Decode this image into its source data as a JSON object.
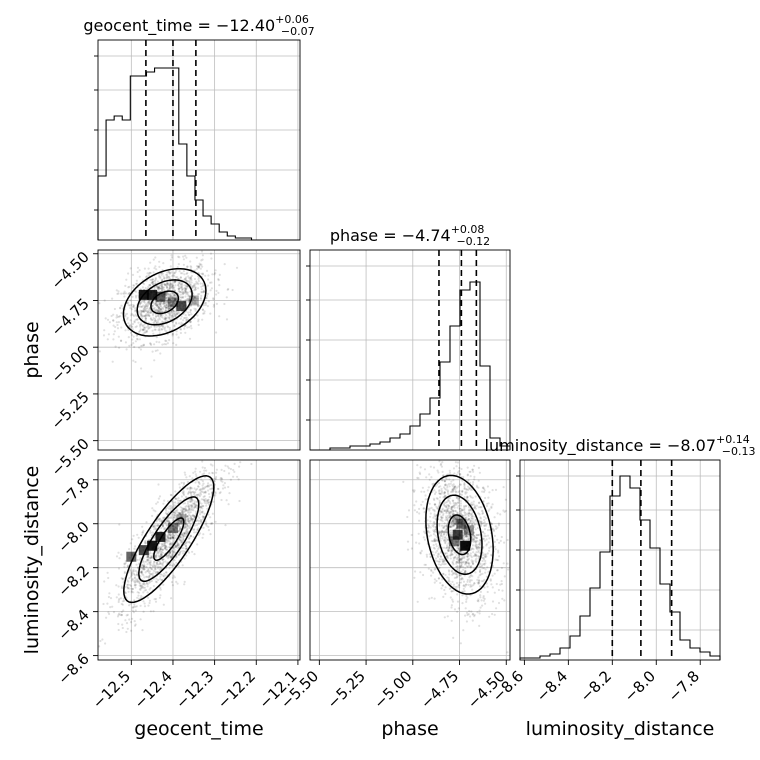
{
  "chart_data": {
    "type": "corner",
    "parameters": [
      {
        "name": "geocent_time",
        "title": {
          "base": "geocent_time = −12.40",
          "sup": "+0.06",
          "sub": "−0.07"
        },
        "median": -12.4,
        "quantile_lines": [
          -12.465,
          -12.4,
          -12.345
        ],
        "range": [
          -12.58,
          -12.095
        ],
        "ticks": [
          -12.5,
          -12.4,
          -12.3,
          -12.2,
          -12.1
        ],
        "tick_labels": [
          "−12.5",
          "−12.4",
          "−12.3",
          "−12.2",
          "−12.1"
        ],
        "axis_label": "geocent_time",
        "histogram": [
          0.32,
          0.6,
          0.62,
          0.6,
          0.82,
          0.82,
          0.84,
          0.86,
          0.86,
          0.86,
          0.48,
          0.32,
          0.2,
          0.12,
          0.08,
          0.04,
          0.02,
          0.01,
          0.01,
          0.0,
          0.0,
          0.0,
          0.0,
          0.0,
          0.0
        ]
      },
      {
        "name": "phase",
        "title": {
          "base": "phase = −4.74",
          "sup": "+0.08",
          "sub": "−0.12"
        },
        "median": -4.74,
        "quantile_lines": [
          -4.86,
          -4.74,
          -4.66
        ],
        "range": [
          -5.55,
          -4.48
        ],
        "ticks": [
          -5.5,
          -5.25,
          -5.0,
          -4.75,
          -4.5
        ],
        "tick_labels": [
          "−5.50",
          "−5.25",
          "−5.00",
          "−4.75",
          "−4.50"
        ],
        "axis_label": "phase",
        "histogram": [
          0.0,
          0.0,
          0.01,
          0.01,
          0.02,
          0.02,
          0.03,
          0.04,
          0.06,
          0.08,
          0.12,
          0.18,
          0.26,
          0.44,
          0.62,
          0.8,
          0.84,
          0.42,
          0.06,
          0.02
        ]
      },
      {
        "name": "luminosity_distance",
        "title": {
          "base": "luminosity_distance = −8.07",
          "sup": "+0.14",
          "sub": "−0.13"
        },
        "median": -8.07,
        "quantile_lines": [
          -8.2,
          -8.07,
          -7.93
        ],
        "range": [
          -8.62,
          -7.71
        ],
        "ticks": [
          -8.6,
          -8.4,
          -8.2,
          -8.0,
          -7.8
        ],
        "tick_labels": [
          "−8.6",
          "−8.4",
          "−8.2",
          "−8.0",
          "−7.8"
        ],
        "axis_label": "luminosity_distance",
        "histogram": [
          0.01,
          0.01,
          0.02,
          0.03,
          0.06,
          0.12,
          0.22,
          0.36,
          0.54,
          0.82,
          0.92,
          0.86,
          0.7,
          0.56,
          0.38,
          0.24,
          0.1,
          0.06,
          0.04,
          0.02
        ]
      }
    ],
    "grid": true
  }
}
